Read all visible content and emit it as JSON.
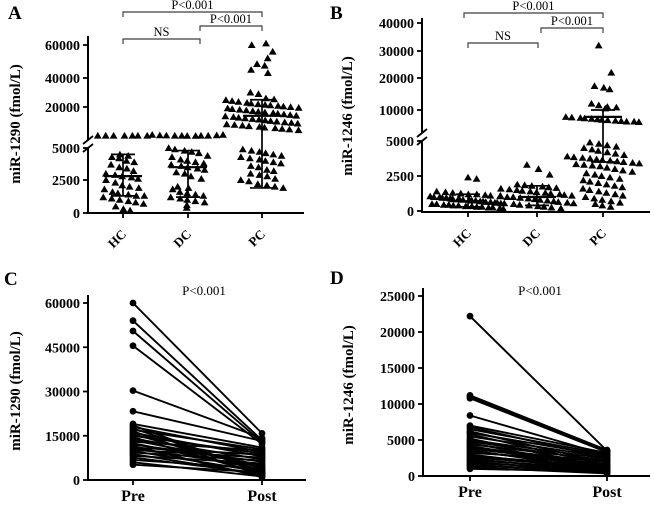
{
  "colors": {
    "data": "#000000",
    "bracket": "#3f3f3f",
    "background": "#ffffff"
  },
  "chart_data": [
    {
      "panel_label": "A",
      "type": "scatter",
      "marker": "triangle",
      "ylabel": "miR-1290 (fmol/L)",
      "categories": [
        "HC",
        "DC",
        "PC"
      ],
      "axis_break": true,
      "y_ticks_lower": [
        0,
        2500,
        5000
      ],
      "y_ticks_upper": [
        20000,
        40000,
        60000
      ],
      "ylim": [
        0,
        63000
      ],
      "significance": [
        {
          "label": "P<0.001",
          "between": [
            "HC",
            "PC"
          ]
        },
        {
          "label": "P<0.001",
          "between": [
            "DC",
            "PC"
          ]
        },
        {
          "label": "NS",
          "between": [
            "HC",
            "DC"
          ]
        }
      ],
      "groups": [
        {
          "name": "HC",
          "median": 2800,
          "iqr": [
            1300,
            4500
          ],
          "values": [
            7000,
            7000,
            7000,
            7000,
            7000,
            7000,
            7000,
            4500,
            4400,
            4300,
            4200,
            4000,
            3900,
            3700,
            3500,
            3400,
            3200,
            3000,
            2900,
            2800,
            2700,
            2600,
            2500,
            2300,
            2100,
            2000,
            1900,
            1800,
            1600,
            1500,
            1400,
            1300,
            1300,
            1200,
            1100,
            1000,
            900,
            800,
            700,
            500,
            300,
            200
          ]
        },
        {
          "name": "DC",
          "median": 3500,
          "iqr": [
            1200,
            4800
          ],
          "values": [
            7400,
            7200,
            7100,
            7000,
            7000,
            6900,
            6900,
            7000,
            7000,
            7200,
            7400,
            5000,
            4900,
            4800,
            4700,
            4600,
            4400,
            4300,
            4100,
            4000,
            3900,
            3800,
            3700,
            3600,
            3500,
            3400,
            3300,
            3100,
            3000,
            2800,
            2600,
            2000,
            1900,
            1800,
            1600,
            1500,
            1400,
            1300,
            1200,
            1100,
            1000,
            900,
            800,
            600,
            400
          ]
        },
        {
          "name": "PC",
          "median": 16000,
          "iqr": [
            1900,
            25000
          ],
          "values": [
            61000,
            60000,
            56000,
            52000,
            48500,
            47500,
            45000,
            43000,
            30000,
            29000,
            26000,
            25400,
            24800,
            24200,
            23600,
            23000,
            22500,
            22000,
            21600,
            21200,
            20800,
            20400,
            20000,
            19700,
            19400,
            19100,
            18800,
            18500,
            18200,
            17900,
            17600,
            17300,
            17000,
            16700,
            16400,
            16100,
            15800,
            15500,
            15200,
            14900,
            14600,
            14300,
            14000,
            13700,
            13400,
            13100,
            12800,
            12500,
            12200,
            11900,
            11600,
            11300,
            11000,
            10700,
            10400,
            10100,
            9800,
            9500,
            4900,
            4800,
            4700,
            4600,
            4500,
            4400,
            4300,
            4200,
            4100,
            4000,
            3900,
            3800,
            3600,
            3500,
            3300,
            3200,
            3000,
            2900,
            2800,
            2600,
            2500,
            2400,
            2200,
            2100,
            2000,
            1900
          ]
        }
      ]
    },
    {
      "panel_label": "B",
      "type": "scatter",
      "marker": "triangle",
      "ylabel": "miR-1246 (fmol/L)",
      "categories": [
        "HC",
        "DC",
        "PC"
      ],
      "axis_break": true,
      "y_ticks_lower": [
        0,
        2500,
        5000
      ],
      "y_ticks_upper": [
        10000,
        20000,
        30000,
        40000
      ],
      "ylim": [
        0,
        40000
      ],
      "significance": [
        {
          "label": "P<0.001",
          "between": [
            "HC",
            "PC"
          ]
        },
        {
          "label": "P<0.001",
          "between": [
            "DC",
            "PC"
          ]
        },
        {
          "label": "NS",
          "between": [
            "HC",
            "DC"
          ]
        }
      ],
      "groups": [
        {
          "name": "HC",
          "median": 700,
          "iqr": [
            300,
            1200
          ],
          "values": [
            2400,
            2300,
            1400,
            1350,
            1300,
            1250,
            1200,
            1200,
            1150,
            1100,
            1100,
            1050,
            1000,
            1000,
            950,
            950,
            900,
            900,
            850,
            850,
            800,
            800,
            750,
            750,
            700,
            700,
            650,
            650,
            600,
            600,
            550,
            550,
            500,
            500,
            450,
            450,
            400,
            400,
            350,
            350,
            300,
            300,
            250,
            250,
            200,
            150
          ]
        },
        {
          "name": "DC",
          "median": 1000,
          "iqr": [
            400,
            1800
          ],
          "values": [
            3300,
            3000,
            2600,
            1900,
            1850,
            1800,
            1750,
            1700,
            1650,
            1600,
            1550,
            1500,
            1450,
            1400,
            1350,
            1300,
            1250,
            1200,
            1150,
            1100,
            1050,
            1000,
            1000,
            950,
            900,
            850,
            800,
            750,
            700,
            650,
            600,
            550,
            500,
            450,
            400,
            350,
            300,
            250,
            200
          ]
        },
        {
          "name": "PC",
          "median": 8500,
          "iqr": [
            3500,
            10000
          ],
          "values": [
            32000,
            22000,
            17500,
            17000,
            16500,
            12000,
            11500,
            11000,
            10800,
            10500,
            8500,
            8400,
            8300,
            8200,
            8100,
            8000,
            7900,
            7800,
            7700,
            7600,
            7500,
            7500,
            7400,
            4900,
            4800,
            4700,
            4600,
            4500,
            4400,
            4300,
            4200,
            4100,
            4000,
            3900,
            3850,
            3800,
            3750,
            3700,
            3650,
            3600,
            3550,
            3500,
            3450,
            3400,
            3350,
            3300,
            3250,
            3200,
            3100,
            3000,
            2900,
            2800,
            2700,
            2600,
            2500,
            2400,
            2300,
            2200,
            2100,
            2000,
            1900,
            1800,
            1700,
            1600,
            1500,
            1400,
            1300,
            1200,
            1100,
            1000,
            900,
            800,
            700,
            600,
            500,
            400,
            300
          ]
        }
      ]
    },
    {
      "panel_label": "C",
      "type": "line",
      "subtype": "paired",
      "marker": "circle",
      "ylabel": "miR-1290 (fmol/L)",
      "categories": [
        "Pre",
        "Post"
      ],
      "y_ticks": [
        0,
        15000,
        30000,
        45000,
        60000
      ],
      "ylim": [
        0,
        62000
      ],
      "annotation": "P<0.001",
      "pairs": [
        [
          60000,
          15800
        ],
        [
          54000,
          13500
        ],
        [
          50500,
          12800
        ],
        [
          45500,
          12200
        ],
        [
          30300,
          14200
        ],
        [
          23300,
          13200
        ],
        [
          19000,
          11000
        ],
        [
          18500,
          2500
        ],
        [
          18000,
          9500
        ],
        [
          17500,
          3000
        ],
        [
          17000,
          10400
        ],
        [
          16500,
          1500
        ],
        [
          16000,
          8000
        ],
        [
          15500,
          4000
        ],
        [
          15000,
          9000
        ],
        [
          14500,
          2000
        ],
        [
          14000,
          7000
        ],
        [
          13500,
          5000
        ],
        [
          13000,
          10000
        ],
        [
          12500,
          3500
        ],
        [
          12000,
          6200
        ],
        [
          11500,
          1000
        ],
        [
          11000,
          8600
        ],
        [
          10600,
          4600
        ],
        [
          10200,
          7600
        ],
        [
          9800,
          2800
        ],
        [
          9300,
          6600
        ],
        [
          8800,
          1800
        ],
        [
          8200,
          5600
        ],
        [
          7600,
          2200
        ],
        [
          6800,
          3900
        ],
        [
          6000,
          1200
        ],
        [
          5200,
          2600
        ]
      ]
    },
    {
      "panel_label": "D",
      "type": "line",
      "subtype": "paired",
      "marker": "circle",
      "ylabel": "miR-1246 (fmol/L)",
      "categories": [
        "Pre",
        "Post"
      ],
      "y_ticks": [
        0,
        5000,
        10000,
        15000,
        20000,
        25000
      ],
      "ylim": [
        0,
        25000
      ],
      "annotation": "P<0.001",
      "pairs": [
        [
          22200,
          3500
        ],
        [
          11200,
          3600
        ],
        [
          11000,
          3400
        ],
        [
          10800,
          3300
        ],
        [
          8400,
          2900
        ],
        [
          7000,
          3200
        ],
        [
          6800,
          2500
        ],
        [
          6500,
          3000
        ],
        [
          6200,
          1800
        ],
        [
          6000,
          2800
        ],
        [
          5800,
          1500
        ],
        [
          5500,
          2600
        ],
        [
          5200,
          1200
        ],
        [
          5000,
          2400
        ],
        [
          4800,
          2000
        ],
        [
          4600,
          1000
        ],
        [
          4400,
          2200
        ],
        [
          4200,
          900
        ],
        [
          4000,
          1900
        ],
        [
          3800,
          1600
        ],
        [
          3600,
          800
        ],
        [
          3400,
          1400
        ],
        [
          3200,
          2100
        ],
        [
          3000,
          700
        ],
        [
          2800,
          1300
        ],
        [
          2600,
          1100
        ],
        [
          2400,
          600
        ],
        [
          2200,
          1000
        ],
        [
          2000,
          500
        ],
        [
          1800,
          900
        ],
        [
          1600,
          400
        ],
        [
          1400,
          800
        ],
        [
          1200,
          350
        ],
        [
          1000,
          600
        ]
      ]
    }
  ]
}
